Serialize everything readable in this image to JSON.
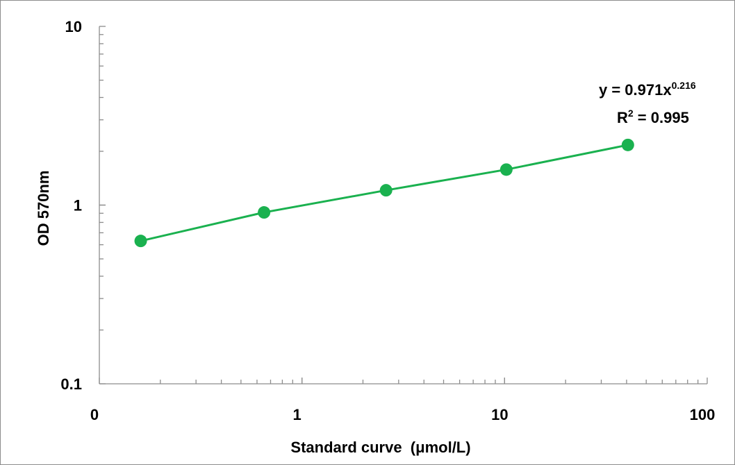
{
  "chart_data": {
    "type": "scatter",
    "xscale": "log",
    "yscale": "log",
    "xlim": [
      0.1,
      100
    ],
    "ylim": [
      0.1,
      10
    ],
    "xticklabels": [
      "0",
      "1",
      "10",
      "100"
    ],
    "yticklabels": [
      "0.1",
      "1",
      "10"
    ],
    "xlabel": "Standard curve  (μmol/L)",
    "ylabel": "OD 570nm",
    "grid": false,
    "series": [
      {
        "color": "#1ab14f",
        "x": [
          0.16,
          0.65,
          2.6,
          10.2,
          40.6
        ],
        "y": [
          0.63,
          0.91,
          1.21,
          1.58,
          2.17
        ]
      }
    ],
    "trendline": {
      "type": "power",
      "a": 0.971,
      "b": 0.216,
      "color": "#1ab14f",
      "equation": {
        "prefix": "y = 0.971x",
        "exponent": "0.216",
        "r2_label": "R",
        "r2_exp": "2",
        "r2_value": " = 0.995"
      }
    }
  }
}
